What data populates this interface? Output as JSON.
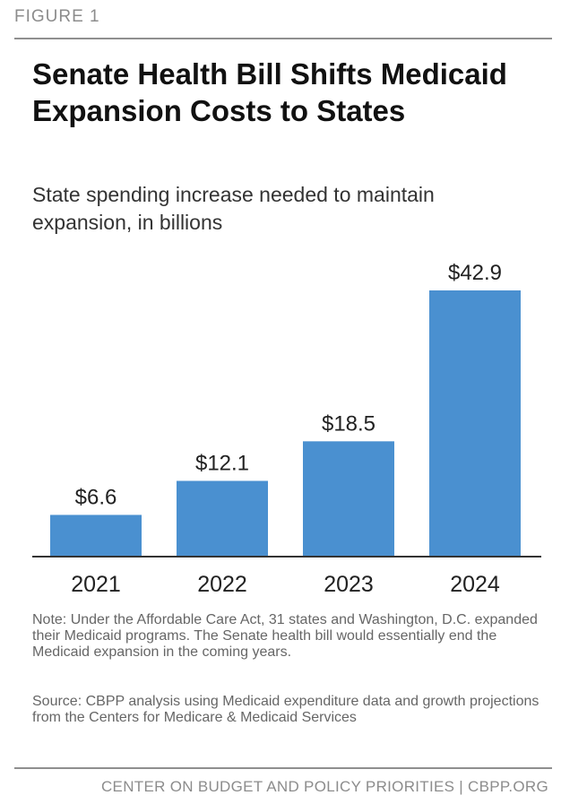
{
  "figure_label": "FIGURE 1",
  "chart_data": {
    "type": "bar",
    "title": "Senate Health Bill Shifts Medicaid Expansion Costs to States",
    "subtitle": "State spending increase needed to maintain expansion, in billions",
    "categories": [
      "2021",
      "2022",
      "2023",
      "2024"
    ],
    "values": [
      6.6,
      12.1,
      18.5,
      42.9
    ],
    "data_labels": [
      "$6.6",
      "$12.1",
      "$18.5",
      "$42.9"
    ],
    "xlabel": "",
    "ylabel": "",
    "ylim": [
      0,
      42.9
    ],
    "grid": false,
    "legend": "none",
    "bar_color": "#4a90d0"
  },
  "note": "Note: Under the Affordable Care Act, 31 states and Washington, D.C. expanded their Medicaid programs. The Senate health bill would essentially end the Medicaid expansion in the coming years.",
  "source": "Source: CBPP analysis using Medicaid expenditure data and growth projections from the Centers for Medicare & Medicaid Services",
  "footer": "CENTER ON BUDGET AND POLICY PRIORITIES | CBPP.ORG"
}
